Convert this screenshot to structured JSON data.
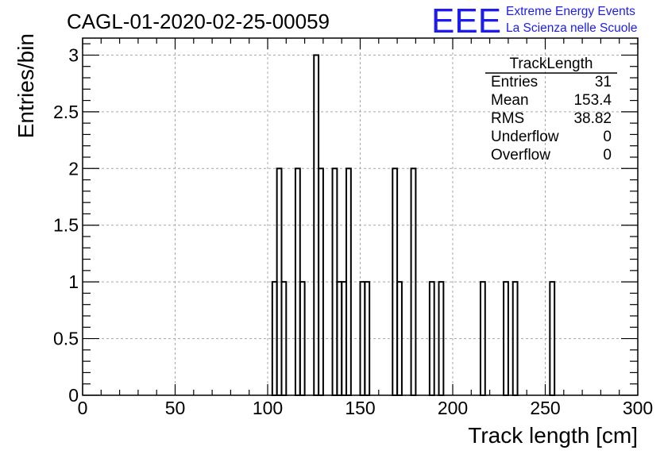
{
  "run_title": "CAGL-01-2020-02-25-00059",
  "logo": {
    "letters": "EEE",
    "line1": "Extreme Energy Events",
    "line2": "La Scienza nelle Scuole",
    "color": "#1c1cf0"
  },
  "stats": {
    "name": "TrackLength",
    "rows": [
      {
        "label": "Entries",
        "value": "31"
      },
      {
        "label": "Mean",
        "value": "153.4"
      },
      {
        "label": "RMS",
        "value": "38.82"
      },
      {
        "label": "Underflow",
        "value": "0"
      },
      {
        "label": "Overflow",
        "value": "0"
      }
    ]
  },
  "chart_data": {
    "type": "histogram",
    "xlabel": "Track length [cm]",
    "ylabel": "Entries/bin",
    "xlim": [
      0,
      300
    ],
    "ylim": [
      0,
      3.15
    ],
    "bin_width": 2.5,
    "grid": true,
    "x_ticks": [
      "0",
      "50",
      "100",
      "150",
      "200",
      "250",
      "300"
    ],
    "y_ticks": [
      "0",
      "0.5",
      "1",
      "1.5",
      "2",
      "2.5",
      "3"
    ],
    "bins": [
      {
        "x_start": 102.5,
        "count": 1
      },
      {
        "x_start": 105,
        "count": 2
      },
      {
        "x_start": 107.5,
        "count": 1
      },
      {
        "x_start": 115,
        "count": 2
      },
      {
        "x_start": 117.5,
        "count": 1
      },
      {
        "x_start": 125,
        "count": 3
      },
      {
        "x_start": 127.5,
        "count": 2
      },
      {
        "x_start": 135,
        "count": 2
      },
      {
        "x_start": 137.5,
        "count": 1
      },
      {
        "x_start": 140,
        "count": 1
      },
      {
        "x_start": 142.5,
        "count": 2
      },
      {
        "x_start": 150,
        "count": 1
      },
      {
        "x_start": 152.5,
        "count": 1
      },
      {
        "x_start": 167.5,
        "count": 2
      },
      {
        "x_start": 170,
        "count": 1
      },
      {
        "x_start": 177.5,
        "count": 2
      },
      {
        "x_start": 187.5,
        "count": 1
      },
      {
        "x_start": 192.5,
        "count": 1
      },
      {
        "x_start": 215,
        "count": 1
      },
      {
        "x_start": 227.5,
        "count": 1
      },
      {
        "x_start": 232.5,
        "count": 1
      },
      {
        "x_start": 252.5,
        "count": 1
      }
    ]
  }
}
